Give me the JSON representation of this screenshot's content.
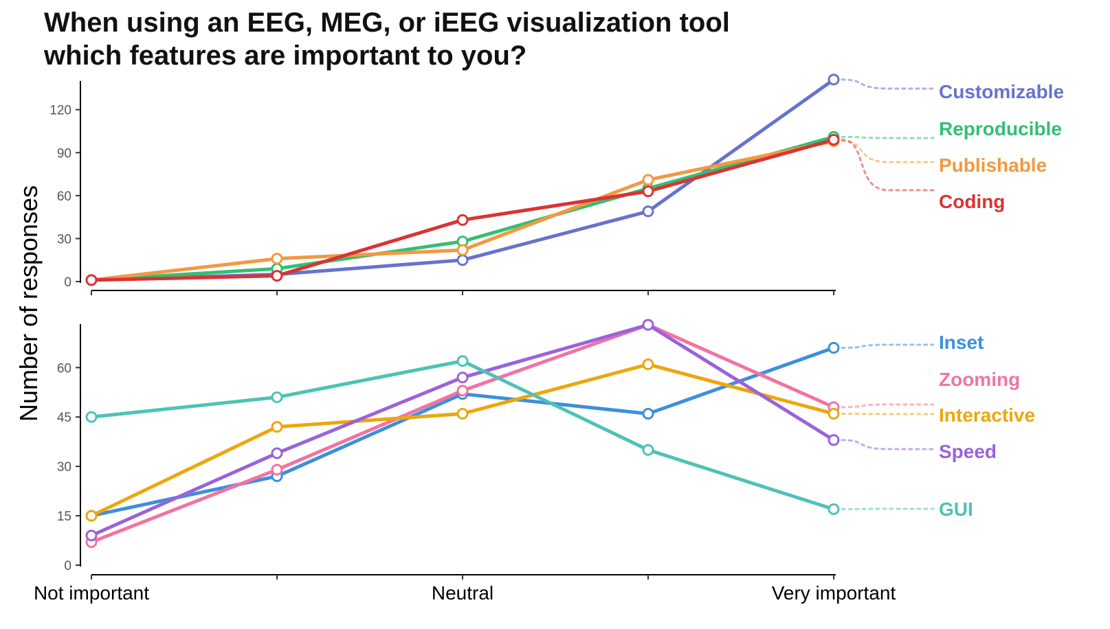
{
  "title_line1": "When using an EEG, MEG, or iEEG visualization tool",
  "title_line2": "which features are important to you?",
  "y_axis_label": "Number of responses",
  "chart_data": [
    {
      "type": "line",
      "categories": [
        "Not important",
        "",
        "Neutral",
        "",
        "Very important"
      ],
      "ylim": [
        0,
        140
      ],
      "yticks": [
        0,
        30,
        60,
        90,
        120
      ],
      "series": [
        {
          "name": "Customizable",
          "color": "#6673cc",
          "values": [
            1,
            5,
            15,
            49,
            141
          ]
        },
        {
          "name": "Reproducible",
          "color": "#33bf73",
          "values": [
            1,
            9,
            28,
            65,
            101
          ]
        },
        {
          "name": "Publishable",
          "color": "#f29940",
          "values": [
            1,
            16,
            22,
            71,
            98
          ]
        },
        {
          "name": "Coding",
          "color": "#db3333",
          "values": [
            1,
            4,
            43,
            63,
            99
          ]
        }
      ]
    },
    {
      "type": "line",
      "categories": [
        "Not important",
        "",
        "Neutral",
        "",
        "Very important"
      ],
      "ylim": [
        0,
        73
      ],
      "yticks": [
        0,
        15,
        30,
        45,
        60
      ],
      "series": [
        {
          "name": "Inset",
          "color": "#3d8fdb",
          "values": [
            15,
            27,
            52,
            46,
            66
          ]
        },
        {
          "name": "Zooming",
          "color": "#f273a3",
          "values": [
            7,
            29,
            53,
            73,
            48
          ]
        },
        {
          "name": "Interactive",
          "color": "#eda60d",
          "values": [
            15,
            42,
            46,
            61,
            46
          ]
        },
        {
          "name": "Speed",
          "color": "#9963db",
          "values": [
            9,
            34,
            57,
            73,
            38
          ]
        },
        {
          "name": "GUI",
          "color": "#4dc2b8",
          "values": [
            45,
            51,
            62,
            35,
            17
          ]
        }
      ]
    }
  ]
}
